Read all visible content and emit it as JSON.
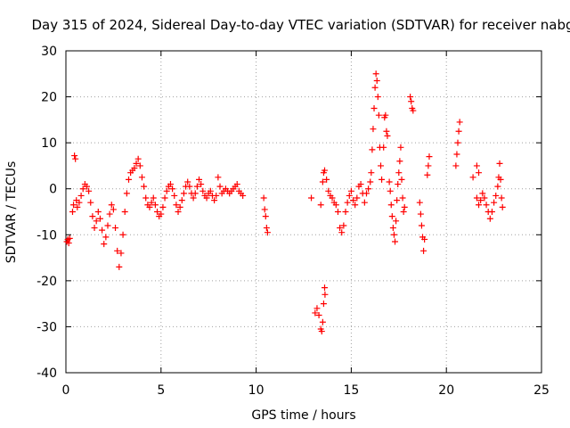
{
  "chart_data": {
    "type": "scatter",
    "title": "Day 315 of 2024, Sidereal Day-to-day VTEC variation (SDTVAR) for receiver nabg",
    "xlabel": "GPS time / hours",
    "ylabel": "SDTVAR / TECUs",
    "xlim": [
      0,
      25
    ],
    "ylim": [
      -40,
      30
    ],
    "xticks": [
      "0",
      "5",
      "10",
      "15",
      "20",
      "25"
    ],
    "yticks": [
      "-40",
      "-30",
      "-20",
      "-10",
      "0",
      "10",
      "20",
      "30"
    ],
    "grid": true,
    "marker": "plus",
    "color": "#ff0000",
    "series": [
      {
        "name": "SDTVAR",
        "points": [
          [
            0.05,
            -11.5
          ],
          [
            0.1,
            -11.0
          ],
          [
            0.15,
            -11.8
          ],
          [
            0.2,
            -10.8
          ],
          [
            0.35,
            -5.0
          ],
          [
            0.4,
            -3.5
          ],
          [
            0.45,
            7.2
          ],
          [
            0.5,
            6.5
          ],
          [
            0.55,
            -2.5
          ],
          [
            0.6,
            -4.0
          ],
          [
            0.7,
            -3.0
          ],
          [
            0.8,
            -1.5
          ],
          [
            0.9,
            0.0
          ],
          [
            1.0,
            1.0
          ],
          [
            1.1,
            0.5
          ],
          [
            1.2,
            -0.5
          ],
          [
            1.3,
            -3.0
          ],
          [
            1.4,
            -6.0
          ],
          [
            1.5,
            -8.5
          ],
          [
            1.6,
            -7.0
          ],
          [
            1.7,
            -5.0
          ],
          [
            1.8,
            -6.5
          ],
          [
            1.9,
            -9.0
          ],
          [
            2.0,
            -12.0
          ],
          [
            2.1,
            -10.5
          ],
          [
            2.2,
            -8.0
          ],
          [
            2.3,
            -5.5
          ],
          [
            2.4,
            -3.5
          ],
          [
            2.5,
            -4.5
          ],
          [
            2.6,
            -8.5
          ],
          [
            2.7,
            -13.5
          ],
          [
            2.8,
            -17.0
          ],
          [
            2.9,
            -14.0
          ],
          [
            3.0,
            -10.0
          ],
          [
            3.1,
            -5.0
          ],
          [
            3.2,
            -1.0
          ],
          [
            3.3,
            2.0
          ],
          [
            3.4,
            3.5
          ],
          [
            3.5,
            4.0
          ],
          [
            3.6,
            4.5
          ],
          [
            3.7,
            5.5
          ],
          [
            3.8,
            6.5
          ],
          [
            3.9,
            5.0
          ],
          [
            4.0,
            2.5
          ],
          [
            4.1,
            0.5
          ],
          [
            4.2,
            -2.0
          ],
          [
            4.3,
            -3.5
          ],
          [
            4.4,
            -4.0
          ],
          [
            4.5,
            -3.0
          ],
          [
            4.6,
            -2.0
          ],
          [
            4.7,
            -3.5
          ],
          [
            4.8,
            -5.0
          ],
          [
            4.9,
            -6.0
          ],
          [
            5.0,
            -5.5
          ],
          [
            5.1,
            -4.0
          ],
          [
            5.2,
            -2.0
          ],
          [
            5.3,
            -0.5
          ],
          [
            5.4,
            0.5
          ],
          [
            5.5,
            1.0
          ],
          [
            5.6,
            0.0
          ],
          [
            5.7,
            -1.5
          ],
          [
            5.8,
            -3.5
          ],
          [
            5.9,
            -5.0
          ],
          [
            6.0,
            -4.0
          ],
          [
            6.1,
            -2.5
          ],
          [
            6.2,
            -1.0
          ],
          [
            6.3,
            0.5
          ],
          [
            6.4,
            1.5
          ],
          [
            6.5,
            0.5
          ],
          [
            6.6,
            -1.0
          ],
          [
            6.7,
            -2.0
          ],
          [
            6.8,
            -1.0
          ],
          [
            6.9,
            0.5
          ],
          [
            7.0,
            2.0
          ],
          [
            7.1,
            1.0
          ],
          [
            7.2,
            -0.5
          ],
          [
            7.3,
            -1.5
          ],
          [
            7.4,
            -2.0
          ],
          [
            7.5,
            -1.0
          ],
          [
            7.6,
            -0.5
          ],
          [
            7.7,
            -1.5
          ],
          [
            7.8,
            -2.5
          ],
          [
            7.9,
            -1.5
          ],
          [
            8.0,
            2.5
          ],
          [
            8.1,
            0.5
          ],
          [
            8.2,
            -1.0
          ],
          [
            8.3,
            -0.5
          ],
          [
            8.4,
            0.0
          ],
          [
            8.5,
            -0.5
          ],
          [
            8.6,
            -1.0
          ],
          [
            8.7,
            -0.5
          ],
          [
            8.8,
            0.0
          ],
          [
            8.9,
            0.5
          ],
          [
            9.0,
            1.0
          ],
          [
            9.1,
            -0.5
          ],
          [
            9.2,
            -1.0
          ],
          [
            9.3,
            -1.5
          ],
          [
            10.4,
            -2.0
          ],
          [
            10.45,
            -4.5
          ],
          [
            10.5,
            -6.0
          ],
          [
            10.55,
            -8.5
          ],
          [
            10.6,
            -9.5
          ],
          [
            12.9,
            -2.0
          ],
          [
            13.1,
            -27.0
          ],
          [
            13.2,
            -26.0
          ],
          [
            13.3,
            -27.5
          ],
          [
            13.4,
            -30.5
          ],
          [
            13.45,
            -31.0
          ],
          [
            13.5,
            -29.0
          ],
          [
            13.55,
            -25.0
          ],
          [
            13.6,
            -21.5
          ],
          [
            13.62,
            -23.0
          ],
          [
            13.4,
            -3.5
          ],
          [
            13.5,
            1.5
          ],
          [
            13.55,
            3.5
          ],
          [
            13.6,
            4.0
          ],
          [
            13.7,
            2.0
          ],
          [
            13.8,
            -0.5
          ],
          [
            13.9,
            -1.5
          ],
          [
            14.0,
            -2.0
          ],
          [
            14.1,
            -3.0
          ],
          [
            14.2,
            -3.5
          ],
          [
            14.3,
            -5.0
          ],
          [
            14.4,
            -8.5
          ],
          [
            14.5,
            -9.5
          ],
          [
            14.6,
            -8.0
          ],
          [
            14.7,
            -5.0
          ],
          [
            14.8,
            -3.0
          ],
          [
            14.9,
            -1.5
          ],
          [
            15.0,
            -0.5
          ],
          [
            15.1,
            -2.5
          ],
          [
            15.2,
            -3.5
          ],
          [
            15.3,
            -2.0
          ],
          [
            15.4,
            0.5
          ],
          [
            15.5,
            1.0
          ],
          [
            15.6,
            -1.0
          ],
          [
            15.7,
            -3.0
          ],
          [
            15.8,
            -1.0
          ],
          [
            15.9,
            0.0
          ],
          [
            16.0,
            1.5
          ],
          [
            16.05,
            3.5
          ],
          [
            16.1,
            8.5
          ],
          [
            16.15,
            13.0
          ],
          [
            16.2,
            17.5
          ],
          [
            16.25,
            22.0
          ],
          [
            16.3,
            25.0
          ],
          [
            16.35,
            23.5
          ],
          [
            16.4,
            20.0
          ],
          [
            16.45,
            16.0
          ],
          [
            16.5,
            9.0
          ],
          [
            16.55,
            5.0
          ],
          [
            16.6,
            2.0
          ],
          [
            16.7,
            9.0
          ],
          [
            16.75,
            15.5
          ],
          [
            16.8,
            16.0
          ],
          [
            16.85,
            12.5
          ],
          [
            16.9,
            11.5
          ],
          [
            17.0,
            1.5
          ],
          [
            17.05,
            -0.5
          ],
          [
            17.1,
            -3.5
          ],
          [
            17.15,
            -6.0
          ],
          [
            17.2,
            -8.5
          ],
          [
            17.25,
            -10.0
          ],
          [
            17.3,
            -11.5
          ],
          [
            17.35,
            -7.0
          ],
          [
            17.4,
            -2.5
          ],
          [
            17.45,
            1.0
          ],
          [
            17.5,
            3.5
          ],
          [
            17.55,
            6.0
          ],
          [
            17.6,
            9.0
          ],
          [
            17.65,
            2.0
          ],
          [
            17.7,
            -2.0
          ],
          [
            17.75,
            -5.0
          ],
          [
            17.8,
            -4.0
          ],
          [
            18.1,
            20.0
          ],
          [
            18.15,
            19.0
          ],
          [
            18.2,
            17.5
          ],
          [
            18.25,
            17.0
          ],
          [
            18.6,
            -3.0
          ],
          [
            18.65,
            -5.5
          ],
          [
            18.7,
            -8.0
          ],
          [
            18.75,
            -10.5
          ],
          [
            18.8,
            -13.5
          ],
          [
            18.85,
            -11.0
          ],
          [
            19.0,
            3.0
          ],
          [
            19.05,
            5.0
          ],
          [
            19.1,
            7.0
          ],
          [
            20.5,
            5.0
          ],
          [
            20.55,
            7.5
          ],
          [
            20.6,
            10.0
          ],
          [
            20.65,
            12.5
          ],
          [
            20.7,
            14.5
          ],
          [
            21.6,
            5.0
          ],
          [
            21.7,
            3.5
          ],
          [
            21.4,
            2.5
          ],
          [
            21.6,
            -2.0
          ],
          [
            21.7,
            -3.5
          ],
          [
            21.8,
            -2.5
          ],
          [
            21.9,
            -1.0
          ],
          [
            22.0,
            -2.0
          ],
          [
            22.1,
            -3.5
          ],
          [
            22.2,
            -5.0
          ],
          [
            22.3,
            -6.5
          ],
          [
            22.4,
            -5.0
          ],
          [
            22.5,
            -3.0
          ],
          [
            22.6,
            -1.5
          ],
          [
            22.7,
            0.5
          ],
          [
            22.75,
            2.5
          ],
          [
            22.8,
            5.5
          ],
          [
            22.85,
            2.0
          ],
          [
            22.9,
            -2.0
          ],
          [
            22.95,
            -4.0
          ]
        ]
      }
    ]
  }
}
